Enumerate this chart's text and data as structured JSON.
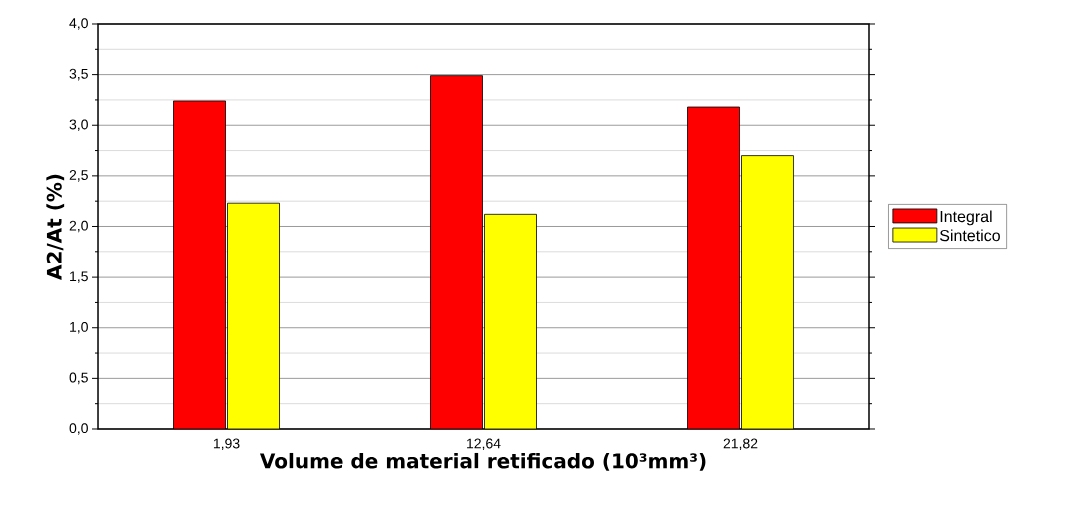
{
  "chart_data": {
    "type": "bar",
    "xlabel": "Volume de material retificado (10³mm³)",
    "ylabel": "A2/At (%)",
    "categories": [
      "1,93",
      "12,64",
      "21,82"
    ],
    "series": [
      {
        "name": "Integral",
        "color": "#ff0000",
        "values": [
          3.24,
          3.49,
          3.18
        ]
      },
      {
        "name": "Sintetico",
        "color": "#ffff00",
        "values": [
          2.23,
          2.12,
          2.7
        ]
      }
    ],
    "ylim": [
      0,
      4
    ],
    "yticks": [
      {
        "value": 0,
        "label": "0,0"
      },
      {
        "value": 0.5,
        "label": "0,5"
      },
      {
        "value": 1,
        "label": "1,0"
      },
      {
        "value": 1.5,
        "label": "1,5"
      },
      {
        "value": 2,
        "label": "2,0"
      },
      {
        "value": 2.5,
        "label": "2,5"
      },
      {
        "value": 3,
        "label": "3,0"
      },
      {
        "value": 3.5,
        "label": "3,5"
      },
      {
        "value": 4,
        "label": "4,0"
      }
    ],
    "grid": "y",
    "legend": "right"
  }
}
